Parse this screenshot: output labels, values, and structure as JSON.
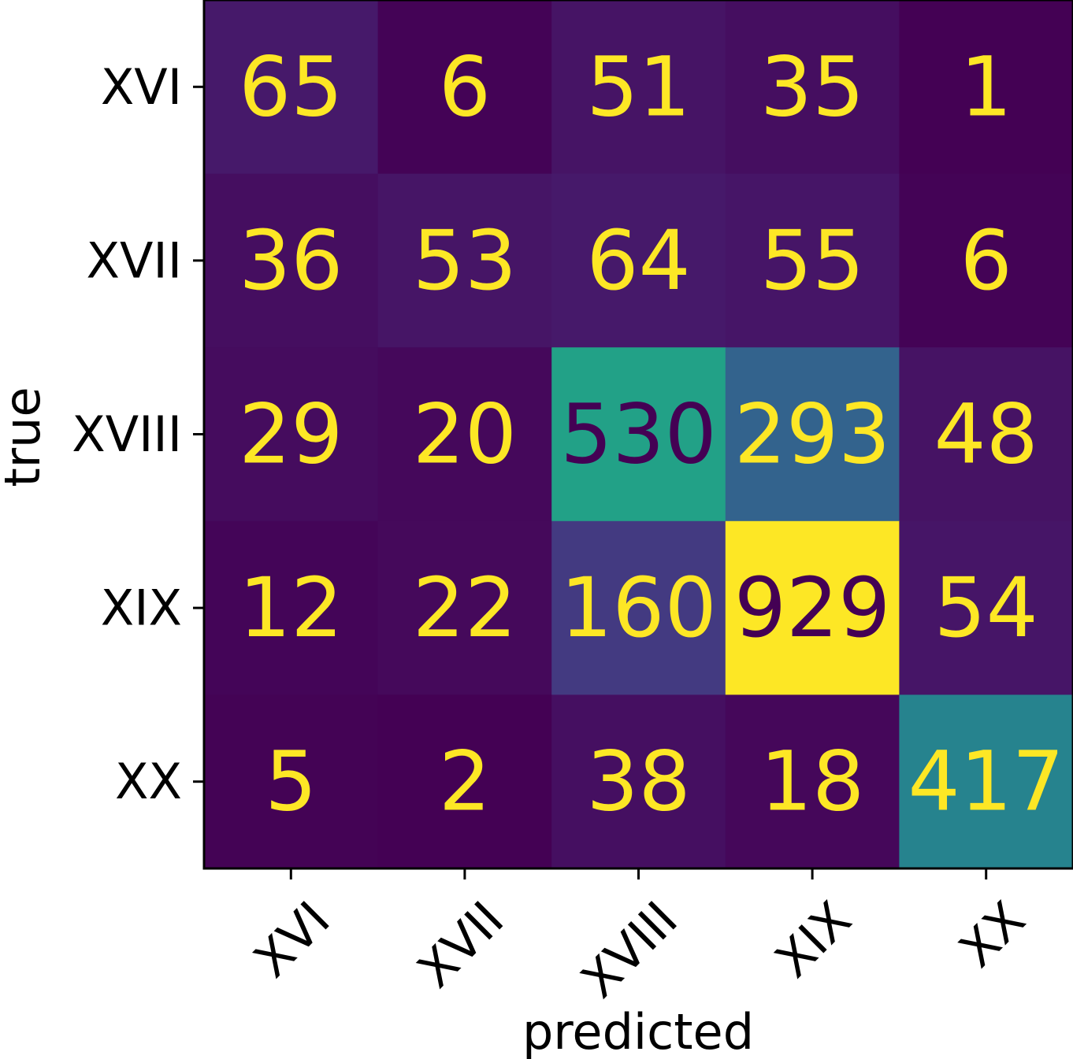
{
  "chart_data": {
    "type": "heatmap",
    "title": "",
    "xlabel": "predicted",
    "ylabel": "true",
    "x_categories": [
      "XVI",
      "XVII",
      "XVIII",
      "XIX",
      "XX"
    ],
    "y_categories": [
      "XVI",
      "XVII",
      "XVIII",
      "XIX",
      "XX"
    ],
    "values": [
      [
        65,
        6,
        51,
        35,
        1
      ],
      [
        36,
        53,
        64,
        55,
        6
      ],
      [
        29,
        20,
        530,
        293,
        48
      ],
      [
        12,
        22,
        160,
        929,
        54
      ],
      [
        5,
        2,
        38,
        18,
        417
      ]
    ],
    "colormap": "viridis",
    "text_colors": {
      "light": "#fde725",
      "dark": "#440154"
    },
    "grid": false
  }
}
